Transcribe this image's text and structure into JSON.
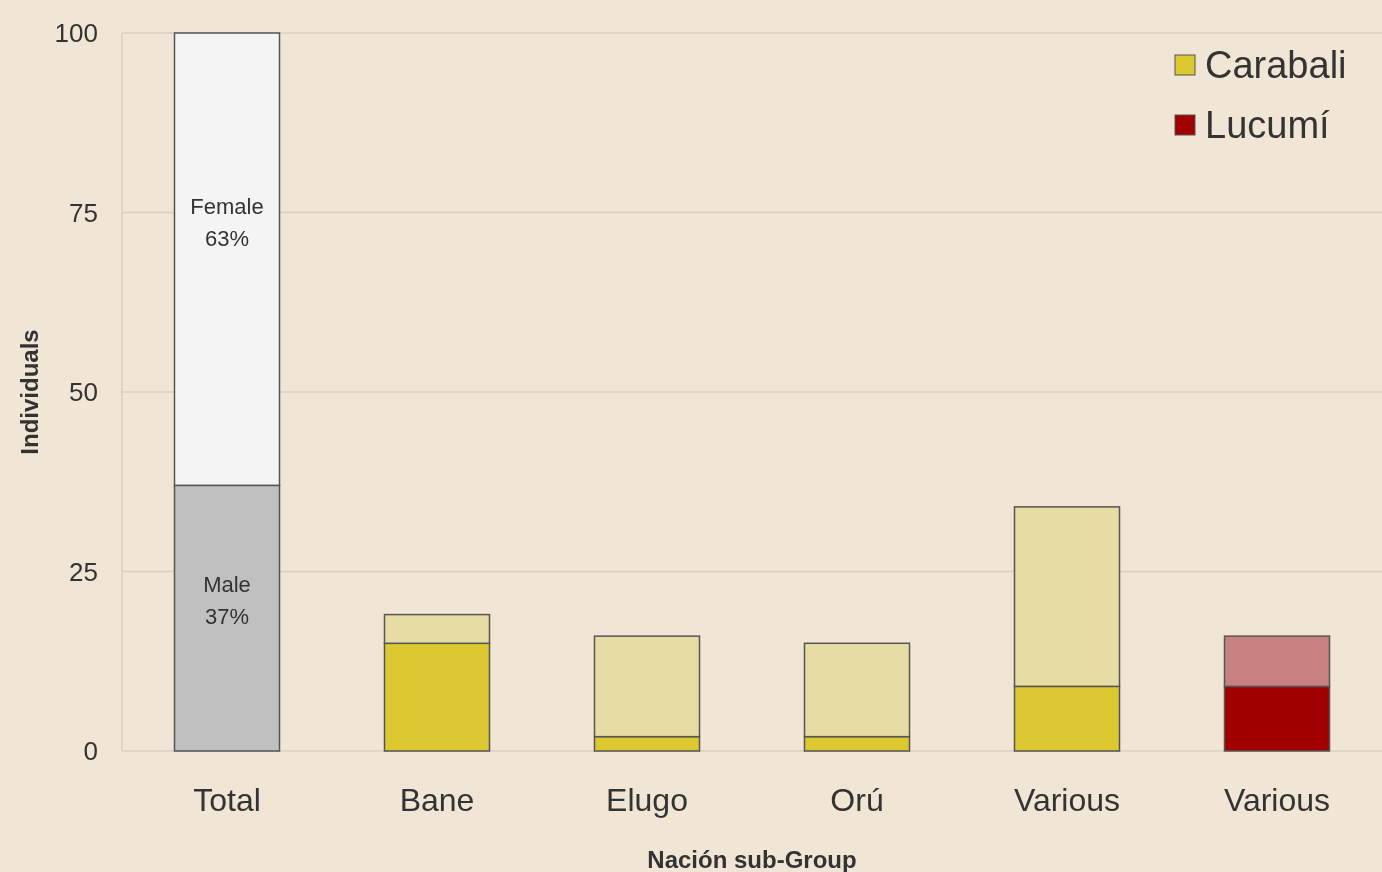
{
  "chart_data": {
    "type": "bar",
    "stacked": true,
    "xlabel": "Nación sub-Group",
    "ylabel": "Individuals",
    "categories": [
      "Total",
      "Bane",
      "Elugo",
      "Orú",
      "Various",
      "Various"
    ],
    "series": [
      {
        "color": "#c0c0c0",
        "values": [
          37,
          null,
          null,
          null,
          null,
          null
        ]
      },
      {
        "name": "Carabali",
        "color": "#dcc830",
        "values": [
          null,
          15,
          2,
          2,
          9,
          null
        ]
      },
      {
        "name": "Lucumí",
        "color": "#a00000",
        "values": [
          null,
          null,
          null,
          null,
          null,
          9
        ]
      },
      {
        "color": "#f4f4f4",
        "values": [
          63,
          null,
          null,
          null,
          null,
          null
        ]
      },
      {
        "color": "#e6dca4",
        "values": [
          null,
          4,
          14,
          13,
          25,
          null
        ]
      },
      {
        "color": "#c88080",
        "values": [
          null,
          null,
          null,
          null,
          null,
          7
        ]
      }
    ],
    "annotations": [
      "Female\n63%",
      "Male\n37%"
    ],
    "ylim": [
      0,
      100
    ],
    "yticks": [
      0,
      25,
      50,
      75,
      100
    ],
    "grid": "y",
    "legend": "top right"
  }
}
